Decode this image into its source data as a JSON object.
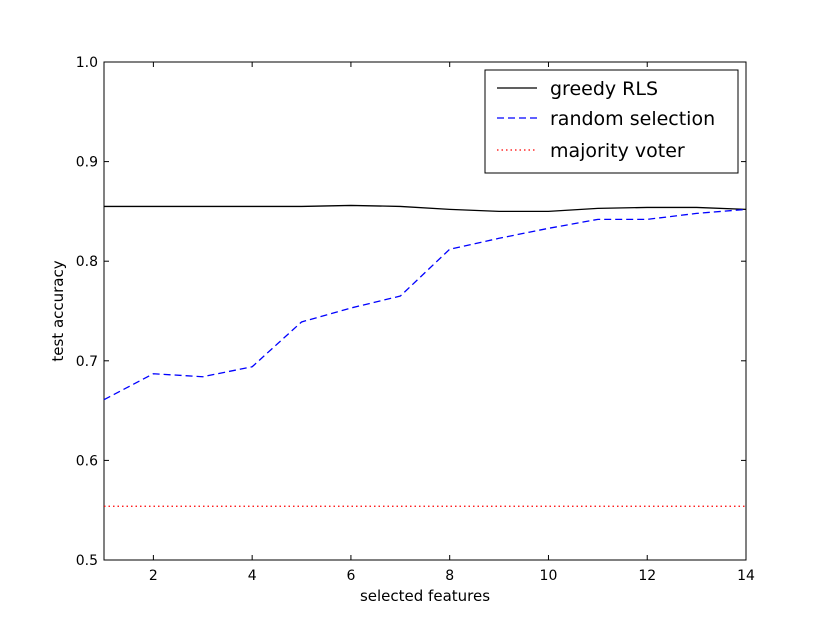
{
  "chart_data": {
    "type": "line",
    "xlabel": "selected features",
    "ylabel": "test accuracy",
    "xlim": [
      1,
      14
    ],
    "ylim": [
      0.5,
      1.0
    ],
    "xticks": [
      2,
      4,
      6,
      8,
      10,
      12,
      14
    ],
    "yticks": [
      0.5,
      0.6,
      0.7,
      0.8,
      0.9,
      1.0
    ],
    "xtick_labels": [
      "2",
      "4",
      "6",
      "8",
      "10",
      "12",
      "14"
    ],
    "ytick_labels": [
      "0.5",
      "0.6",
      "0.7",
      "0.8",
      "0.9",
      "1.0"
    ],
    "grid": false,
    "legend": "top-right",
    "x": [
      1,
      2,
      3,
      4,
      5,
      6,
      7,
      8,
      9,
      10,
      11,
      12,
      13,
      14
    ],
    "series": [
      {
        "name": "greedy RLS",
        "color": "#000000",
        "style": "solid",
        "values": [
          0.855,
          0.855,
          0.855,
          0.855,
          0.855,
          0.856,
          0.855,
          0.852,
          0.85,
          0.85,
          0.853,
          0.854,
          0.854,
          0.852
        ]
      },
      {
        "name": "random selection",
        "color": "#0000ff",
        "style": "dashed",
        "values": [
          0.661,
          0.687,
          0.684,
          0.694,
          0.739,
          0.753,
          0.765,
          0.812,
          0.823,
          0.833,
          0.842,
          0.842,
          0.848,
          0.852
        ]
      },
      {
        "name": "majority voter",
        "color": "#ff0000",
        "style": "dotted",
        "values": [
          0.554,
          0.554,
          0.554,
          0.554,
          0.554,
          0.554,
          0.554,
          0.554,
          0.554,
          0.554,
          0.554,
          0.554,
          0.554,
          0.554
        ]
      }
    ]
  }
}
